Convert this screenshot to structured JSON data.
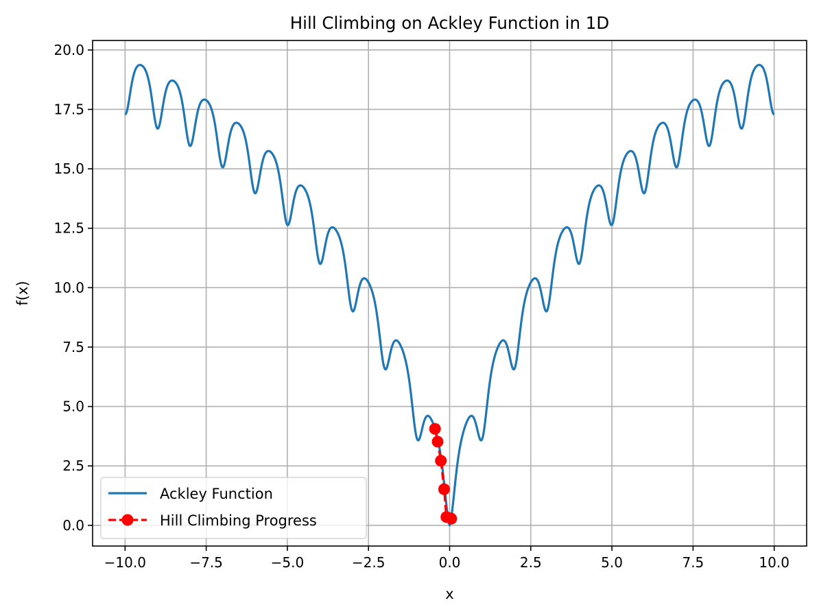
{
  "chart_data": {
    "type": "line",
    "title": "Hill Climbing on Ackley Function in 1D",
    "xlabel": "x",
    "ylabel": "f(x)",
    "xlim": [
      -11.0,
      11.0
    ],
    "ylim": [
      -0.87,
      20.4
    ],
    "grid": true,
    "legend_position": "lower-left",
    "x_ticks": [
      -10.0,
      -7.5,
      -5.0,
      -2.5,
      0.0,
      2.5,
      5.0,
      7.5,
      10.0
    ],
    "x_tick_labels": [
      "−10.0",
      "−7.5",
      "−5.0",
      "−2.5",
      "0.0",
      "2.5",
      "5.0",
      "7.5",
      "10.0"
    ],
    "y_ticks": [
      0.0,
      2.5,
      5.0,
      7.5,
      10.0,
      12.5,
      15.0,
      17.5,
      20.0
    ],
    "y_tick_labels": [
      "0.0",
      "2.5",
      "5.0",
      "7.5",
      "10.0",
      "12.5",
      "15.0",
      "17.5",
      "20.0"
    ],
    "series": [
      {
        "name": "Ackley Function",
        "color": "#1f77b4",
        "style": "solid",
        "function": "ackley-1d",
        "x_range": [
          -10.0,
          10.0
        ]
      },
      {
        "name": "Hill Climbing Progress",
        "color": "#ff0000",
        "style": "dashed",
        "marker": "circle",
        "x": [
          -0.45,
          -0.37,
          -0.27,
          -0.17,
          -0.1,
          0.03,
          0.05
        ],
        "y": [
          4.06,
          3.52,
          2.72,
          1.52,
          0.35,
          0.3,
          0.28
        ]
      }
    ]
  }
}
